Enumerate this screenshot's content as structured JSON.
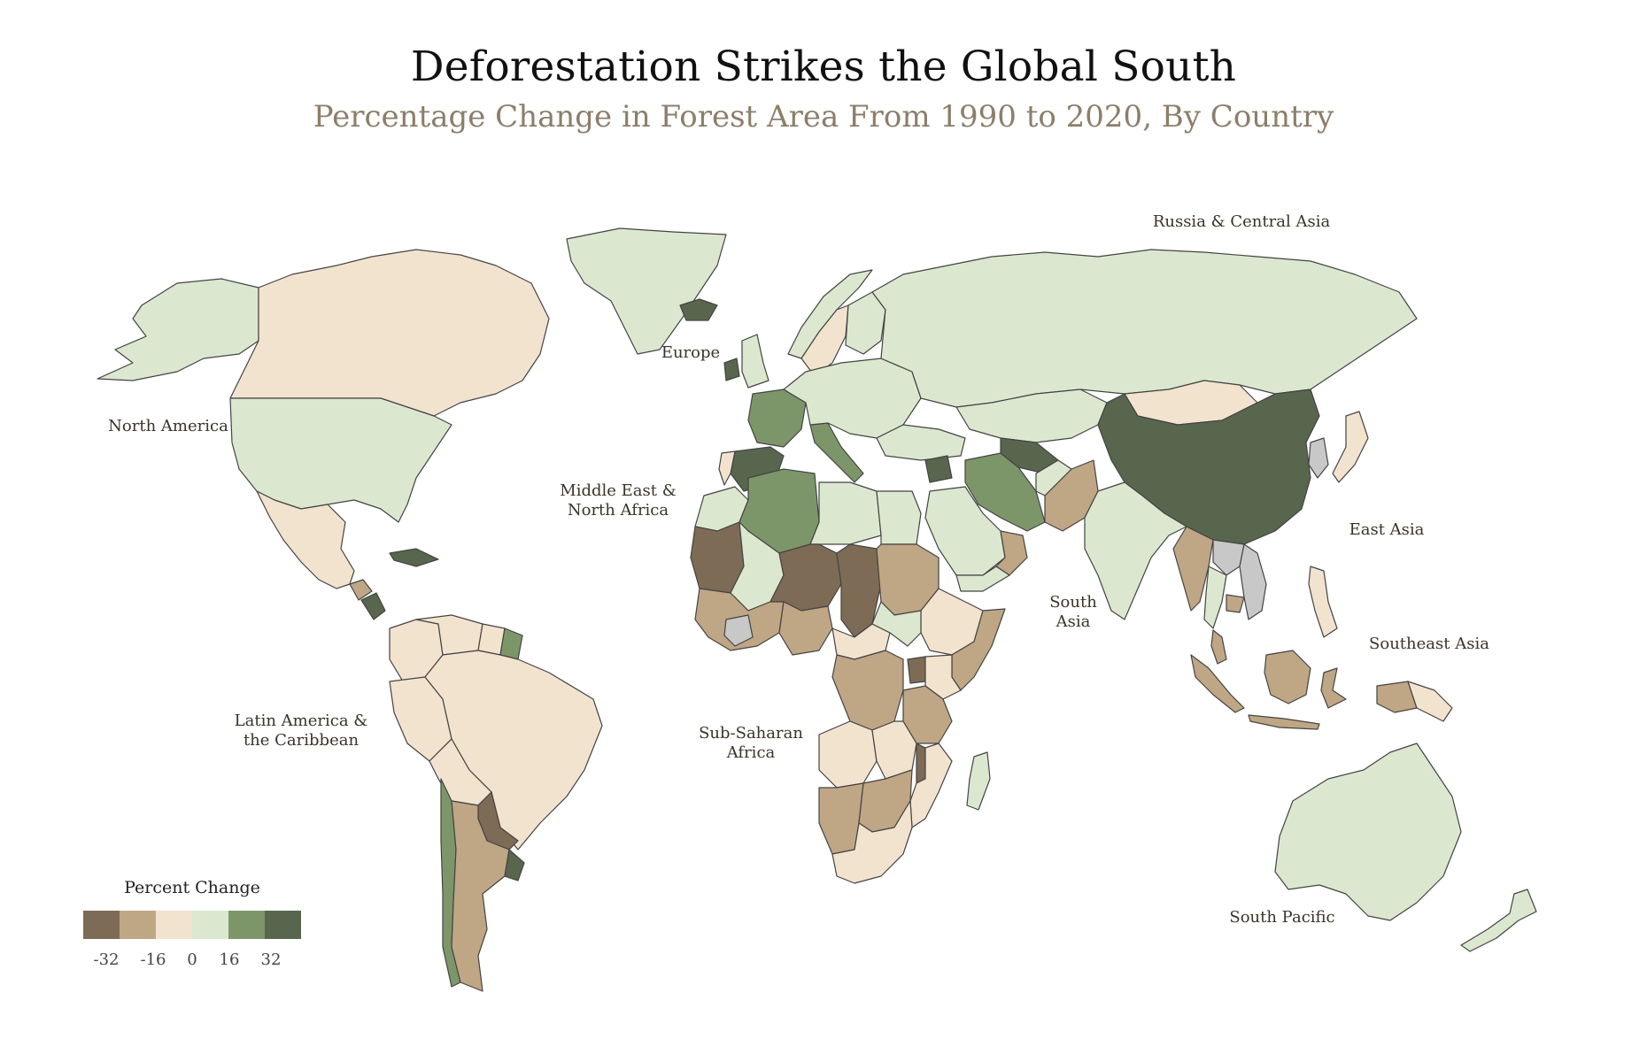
{
  "header": {
    "title": "Deforestation Strikes the Global South",
    "subtitle": "Percentage Change in Forest Area From 1990 to 2020, By Country"
  },
  "colors": {
    "strong_loss": "#7d6b55",
    "loss": "#bfa684",
    "slight_loss": "#f2e3cf",
    "slight_gain": "#dbe8cf",
    "gain": "#7d9669",
    "strong_gain": "#57664d",
    "no_data": "#c8c8c8"
  },
  "regions": [
    {
      "id": "north-america",
      "lines": [
        "North America"
      ]
    },
    {
      "id": "latin-america",
      "lines": [
        "Latin America &",
        "the Caribbean"
      ]
    },
    {
      "id": "europe",
      "lines": [
        "Europe"
      ]
    },
    {
      "id": "middle-east",
      "lines": [
        "Middle East &",
        "North Africa"
      ]
    },
    {
      "id": "sub-saharan",
      "lines": [
        "Sub-Saharan",
        "Africa"
      ]
    },
    {
      "id": "russia",
      "lines": [
        "Russia & Central Asia"
      ]
    },
    {
      "id": "south-asia",
      "lines": [
        "South",
        "Asia"
      ]
    },
    {
      "id": "east-asia",
      "lines": [
        "East Asia"
      ]
    },
    {
      "id": "southeast-asia",
      "lines": [
        "Southeast Asia"
      ]
    },
    {
      "id": "south-pacific",
      "lines": [
        "South Pacific"
      ]
    }
  ],
  "legend": {
    "title": "Percent Change",
    "ticks": [
      "-32",
      "-16",
      "0",
      "16",
      "32"
    ],
    "bins": [
      "strong_loss",
      "loss",
      "slight_loss",
      "slight_gain",
      "gain",
      "strong_gain"
    ]
  },
  "countries": [
    {
      "name": "Canada",
      "cls": "slight_loss"
    },
    {
      "name": "Alaska",
      "cls": "slight_gain"
    },
    {
      "name": "Greenland",
      "cls": "slight_gain"
    },
    {
      "name": "United States",
      "cls": "slight_gain"
    },
    {
      "name": "Mexico",
      "cls": "slight_loss"
    },
    {
      "name": "Guatemala",
      "cls": "loss"
    },
    {
      "name": "Nicaragua",
      "cls": "strong_gain"
    },
    {
      "name": "Cuba",
      "cls": "strong_gain"
    },
    {
      "name": "Brazil",
      "cls": "slight_loss"
    },
    {
      "name": "Colombia",
      "cls": "slight_loss"
    },
    {
      "name": "Venezuela",
      "cls": "slight_loss"
    },
    {
      "name": "Guyana",
      "cls": "slight_loss"
    },
    {
      "name": "French Guiana",
      "cls": "gain"
    },
    {
      "name": "Peru",
      "cls": "slight_loss"
    },
    {
      "name": "Bolivia",
      "cls": "slight_loss"
    },
    {
      "name": "Paraguay",
      "cls": "strong_loss"
    },
    {
      "name": "Chile",
      "cls": "gain"
    },
    {
      "name": "Argentina",
      "cls": "loss"
    },
    {
      "name": "Uruguay",
      "cls": "strong_gain"
    },
    {
      "name": "Iceland",
      "cls": "strong_gain"
    },
    {
      "name": "Ireland",
      "cls": "strong_gain"
    },
    {
      "name": "United Kingdom",
      "cls": "slight_gain"
    },
    {
      "name": "Norway",
      "cls": "slight_gain"
    },
    {
      "name": "Sweden",
      "cls": "slight_loss"
    },
    {
      "name": "Finland",
      "cls": "slight_gain"
    },
    {
      "name": "France",
      "cls": "gain"
    },
    {
      "name": "Spain",
      "cls": "strong_gain"
    },
    {
      "name": "Portugal",
      "cls": "slight_loss"
    },
    {
      "name": "Italy",
      "cls": "gain"
    },
    {
      "name": "Central Europe",
      "cls": "slight_gain"
    },
    {
      "name": "Russia",
      "cls": "slight_gain"
    },
    {
      "name": "Kazakhstan",
      "cls": "slight_gain"
    },
    {
      "name": "Turkmenistan",
      "cls": "strong_gain"
    },
    {
      "name": "Mongolia",
      "cls": "slight_loss"
    },
    {
      "name": "China",
      "cls": "strong_gain"
    },
    {
      "name": "Korea",
      "cls": "no_data"
    },
    {
      "name": "Japan",
      "cls": "slight_loss"
    },
    {
      "name": "Turkey",
      "cls": "slight_gain"
    },
    {
      "name": "Syria",
      "cls": "strong_gain"
    },
    {
      "name": "Iran",
      "cls": "gain"
    },
    {
      "name": "Saudi Arabia",
      "cls": "slight_gain"
    },
    {
      "name": "Oman",
      "cls": "loss"
    },
    {
      "name": "Yemen",
      "cls": "slight_gain"
    },
    {
      "name": "Pakistan",
      "cls": "loss"
    },
    {
      "name": "Afghanistan",
      "cls": "slight_gain"
    },
    {
      "name": "India",
      "cls": "slight_gain"
    },
    {
      "name": "Myanmar",
      "cls": "loss"
    },
    {
      "name": "Thailand",
      "cls": "slight_gain"
    },
    {
      "name": "Laos",
      "cls": "no_data"
    },
    {
      "name": "Vietnam",
      "cls": "no_data"
    },
    {
      "name": "Cambodia",
      "cls": "loss"
    },
    {
      "name": "Malaysia",
      "cls": "loss"
    },
    {
      "name": "Sumatra",
      "cls": "loss"
    },
    {
      "name": "Java",
      "cls": "loss"
    },
    {
      "name": "Borneo",
      "cls": "loss"
    },
    {
      "name": "Sulawesi",
      "cls": "loss"
    },
    {
      "name": "Philippines",
      "cls": "slight_loss"
    },
    {
      "name": "Papua New Guinea",
      "cls": "slight_loss"
    },
    {
      "name": "New Guinea West",
      "cls": "loss"
    },
    {
      "name": "Australia",
      "cls": "slight_gain"
    },
    {
      "name": "New Zealand",
      "cls": "slight_gain"
    },
    {
      "name": "Morocco",
      "cls": "slight_gain"
    },
    {
      "name": "Algeria",
      "cls": "gain"
    },
    {
      "name": "Libya",
      "cls": "slight_gain"
    },
    {
      "name": "Egypt",
      "cls": "slight_gain"
    },
    {
      "name": "Mauritania",
      "cls": "strong_loss"
    },
    {
      "name": "Mali",
      "cls": "slight_gain"
    },
    {
      "name": "Niger",
      "cls": "strong_loss"
    },
    {
      "name": "Chad",
      "cls": "strong_loss"
    },
    {
      "name": "Sudan",
      "cls": "loss"
    },
    {
      "name": "Ethiopia",
      "cls": "slight_loss"
    },
    {
      "name": "Somalia",
      "cls": "loss"
    },
    {
      "name": "Nigeria",
      "cls": "loss"
    },
    {
      "name": "West Africa",
      "cls": "loss"
    },
    {
      "name": "Guinea",
      "cls": "no_data"
    },
    {
      "name": "Central African Rep.",
      "cls": "slight_loss"
    },
    {
      "name": "South Sudan",
      "cls": "slight_gain"
    },
    {
      "name": "DR Congo",
      "cls": "loss"
    },
    {
      "name": "Uganda",
      "cls": "strong_loss"
    },
    {
      "name": "Kenya",
      "cls": "slight_loss"
    },
    {
      "name": "Tanzania",
      "cls": "loss"
    },
    {
      "name": "Angola",
      "cls": "slight_loss"
    },
    {
      "name": "Zambia",
      "cls": "slight_loss"
    },
    {
      "name": "Malawi",
      "cls": "strong_loss"
    },
    {
      "name": "Mozambique",
      "cls": "slight_loss"
    },
    {
      "name": "Namibia",
      "cls": "loss"
    },
    {
      "name": "Botswana",
      "cls": "loss"
    },
    {
      "name": "South Africa",
      "cls": "slight_loss"
    },
    {
      "name": "Madagascar",
      "cls": "slight_gain"
    }
  ]
}
